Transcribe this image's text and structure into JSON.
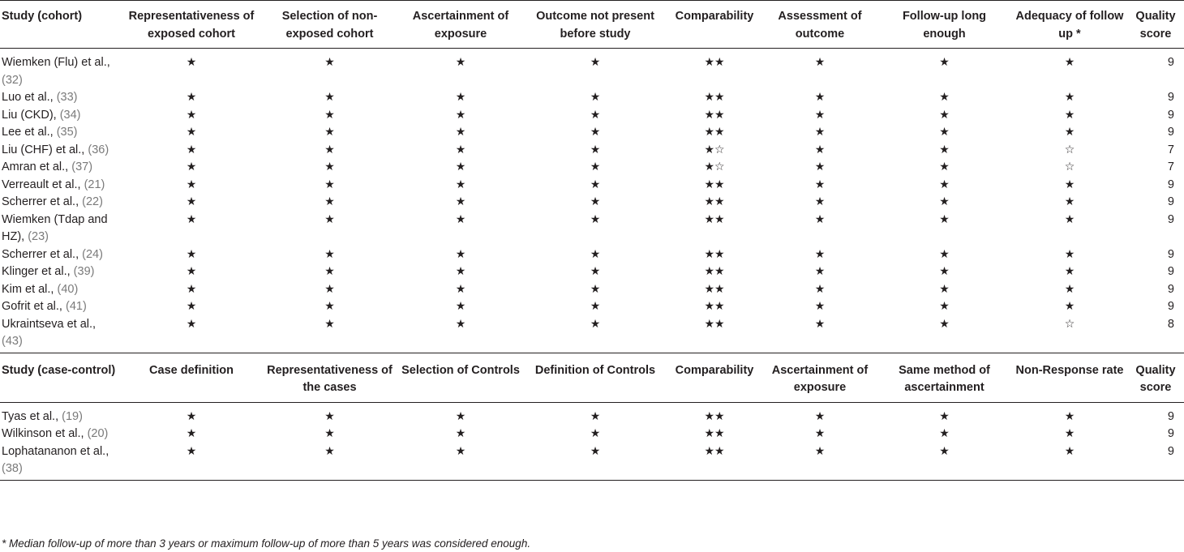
{
  "cohort_headers": [
    "Study (cohort)",
    "Representativeness of exposed cohort",
    "Selection of non-exposed cohort",
    "Ascertainment of exposure",
    "Outcome not present before study",
    "Comparability",
    "Assessment of outcome",
    "Follow-up long enough",
    "Adequacy of follow up *",
    "Quality score"
  ],
  "cohort_rows": [
    {
      "study": "Wiemken (Flu) et al., ",
      "ref": "(32)",
      "cells": [
        "★",
        "★",
        "★",
        "★",
        "★★",
        "★",
        "★",
        "★"
      ],
      "score": "9"
    },
    {
      "study": "Luo et al., ",
      "ref": "(33)",
      "cells": [
        "★",
        "★",
        "★",
        "★",
        "★★",
        "★",
        "★",
        "★"
      ],
      "score": "9"
    },
    {
      "study": "Liu (CKD), ",
      "ref": "(34)",
      "cells": [
        "★",
        "★",
        "★",
        "★",
        "★★",
        "★",
        "★",
        "★"
      ],
      "score": "9"
    },
    {
      "study": "Lee et al., ",
      "ref": "(35)",
      "cells": [
        "★",
        "★",
        "★",
        "★",
        "★★",
        "★",
        "★",
        "★"
      ],
      "score": "9"
    },
    {
      "study": "Liu (CHF) et al., ",
      "ref": "(36)",
      "cells": [
        "★",
        "★",
        "★",
        "★",
        "★☆",
        "★",
        "★",
        "☆"
      ],
      "score": "7"
    },
    {
      "study": "Amran et al., ",
      "ref": "(37)",
      "cells": [
        "★",
        "★",
        "★",
        "★",
        "★☆",
        "★",
        "★",
        "☆"
      ],
      "score": "7"
    },
    {
      "study": "Verreault et al., ",
      "ref": "(21)",
      "cells": [
        "★",
        "★",
        "★",
        "★",
        "★★",
        "★",
        "★",
        "★"
      ],
      "score": "9"
    },
    {
      "study": "Scherrer et al., ",
      "ref": "(22)",
      "cells": [
        "★",
        "★",
        "★",
        "★",
        "★★",
        "★",
        "★",
        "★"
      ],
      "score": "9"
    },
    {
      "study": "Wiemken (Tdap and HZ), ",
      "ref": "(23)",
      "cells": [
        "★",
        "★",
        "★",
        "★",
        "★★",
        "★",
        "★",
        "★"
      ],
      "score": "9"
    },
    {
      "study": "Scherrer et al., ",
      "ref": "(24)",
      "cells": [
        "★",
        "★",
        "★",
        "★",
        "★★",
        "★",
        "★",
        "★"
      ],
      "score": "9"
    },
    {
      "study": "Klinger et al., ",
      "ref": "(39)",
      "cells": [
        "★",
        "★",
        "★",
        "★",
        "★★",
        "★",
        "★",
        "★"
      ],
      "score": "9"
    },
    {
      "study": "Kim et al., ",
      "ref": "(40)",
      "cells": [
        "★",
        "★",
        "★",
        "★",
        "★★",
        "★",
        "★",
        "★"
      ],
      "score": "9"
    },
    {
      "study": "Gofrit et al., ",
      "ref": "(41)",
      "cells": [
        "★",
        "★",
        "★",
        "★",
        "★★",
        "★",
        "★",
        "★"
      ],
      "score": "9"
    },
    {
      "study": "Ukraintseva et al., ",
      "ref": "(43)",
      "cells": [
        "★",
        "★",
        "★",
        "★",
        "★★",
        "★",
        "★",
        "☆"
      ],
      "score": "8"
    }
  ],
  "case_control_headers": [
    "Study (case-control)",
    "Case definition",
    "Representativeness of the cases",
    "Selection of Controls",
    "Definition of Controls",
    "Comparability",
    "Ascertainment of exposure",
    "Same method of ascertainment",
    "Non-Response rate",
    "Quality score"
  ],
  "case_control_rows": [
    {
      "study": "Tyas et al., ",
      "ref": "(19)",
      "cells": [
        "★",
        "★",
        "★",
        "★",
        "★★",
        "★",
        "★",
        "★"
      ],
      "score": "9"
    },
    {
      "study": "Wilkinson et al., ",
      "ref": "(20)",
      "cells": [
        "★",
        "★",
        "★",
        "★",
        "★★",
        "★",
        "★",
        "★"
      ],
      "score": "9"
    },
    {
      "study": "Lophatananon et al., ",
      "ref": "(38)",
      "cells": [
        "★",
        "★",
        "★",
        "★",
        "★★",
        "★",
        "★",
        "★"
      ],
      "score": "9"
    }
  ],
  "footnote": "* Median follow-up of more than 3 years or maximum follow-up of more than 5 years was considered enough."
}
